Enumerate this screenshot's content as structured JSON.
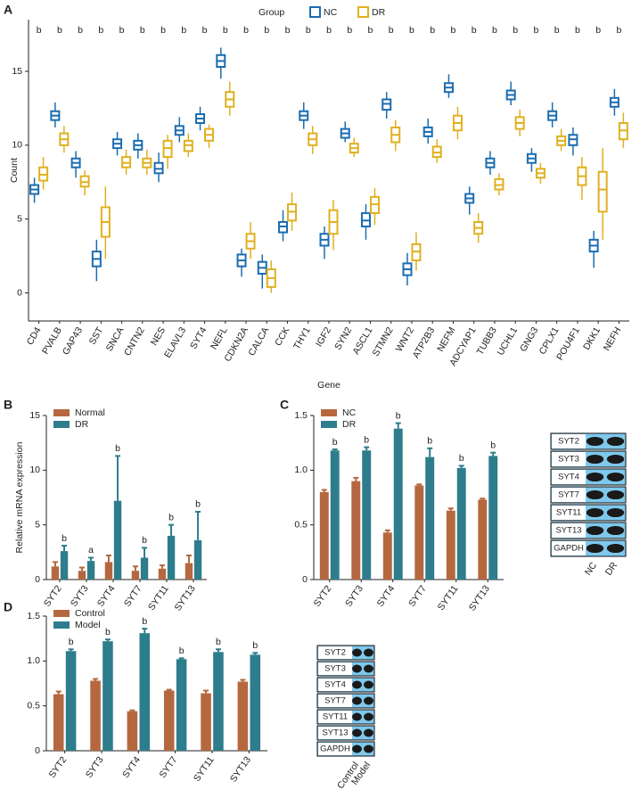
{
  "chart_data": [
    {
      "type": "box",
      "panel": "A",
      "legend_title": "Group",
      "x_label": "Gene",
      "y_label": "Count",
      "categories": [
        "CD4",
        "PVALB",
        "GAP43",
        "SST",
        "SNCA",
        "CNTN2",
        "NES",
        "ELAVL3",
        "SYT4",
        "NEFL",
        "CDKN2A",
        "CALCA",
        "CCK",
        "THY1",
        "IGF2",
        "SYN2",
        "ASCL1",
        "STMN2",
        "WNT2",
        "ATP2B3",
        "NEFM",
        "ADCYAP1",
        "TUBB3",
        "UCHL1",
        "GNG3",
        "CPLX1",
        "POU4F1",
        "DKK1",
        "NEFH"
      ],
      "annotations": [
        "b",
        "b",
        "b",
        "b",
        "b",
        "b",
        "b",
        "b",
        "b",
        "b",
        "b",
        "b",
        "b",
        "b",
        "b",
        "b",
        "b",
        "b",
        "b",
        "b",
        "b",
        "b",
        "b",
        "b",
        "b",
        "b",
        "b",
        "b",
        "b"
      ],
      "ylim": [
        -1.9,
        18.5
      ],
      "yticks": [
        0,
        5,
        10,
        15
      ],
      "series": [
        {
          "name": "NC",
          "color": "#1b6db0",
          "median": [
            7,
            12,
            8.8,
            2.3,
            10.1,
            10,
            8.4,
            11,
            11.8,
            15.7,
            2.2,
            1.7,
            4.5,
            12,
            3.6,
            10.8,
            4.9,
            12.8,
            1.6,
            10.9,
            13.9,
            6.4,
            8.8,
            13.4,
            9.1,
            12,
            10.4,
            3.2,
            12.9
          ],
          "q1": [
            6.7,
            11.7,
            8.5,
            1.8,
            9.8,
            9.7,
            8.1,
            10.7,
            11.5,
            15.3,
            1.8,
            1.3,
            4.1,
            11.7,
            3.2,
            10.5,
            4.5,
            12.4,
            1.2,
            10.6,
            13.6,
            6.1,
            8.5,
            13.1,
            8.8,
            11.7,
            10,
            2.8,
            12.6
          ],
          "q3": [
            7.3,
            12.3,
            9.1,
            2.8,
            10.4,
            10.3,
            8.8,
            11.3,
            12.1,
            16.1,
            2.6,
            2.1,
            4.8,
            12.3,
            4.0,
            11.1,
            5.4,
            13.1,
            2.0,
            11.2,
            14.2,
            6.7,
            9.1,
            13.7,
            9.4,
            12.3,
            10.7,
            3.6,
            13.2
          ],
          "whisker_low": [
            6.1,
            11.2,
            7.8,
            0.8,
            9.3,
            9.1,
            7.5,
            10.2,
            11,
            14.5,
            1.1,
            0.3,
            3.5,
            11.1,
            2.3,
            10.2,
            3.6,
            11.8,
            0.5,
            10.1,
            13.2,
            5.3,
            8,
            12.7,
            8.2,
            11.2,
            9.3,
            1.7,
            12
          ],
          "whisker_high": [
            7.8,
            12.9,
            9.6,
            3.6,
            10.9,
            10.8,
            9.5,
            11.9,
            12.6,
            16.6,
            3.0,
            2.6,
            5.6,
            12.9,
            4.5,
            11.6,
            6,
            13.6,
            2.7,
            11.8,
            14.8,
            7.2,
            9.6,
            14.3,
            9.8,
            12.9,
            11.2,
            4.2,
            13.8
          ]
        },
        {
          "name": "DR",
          "color": "#e0b020",
          "median": [
            8,
            10.4,
            7.5,
            4.8,
            8.8,
            8.8,
            9.8,
            10,
            10.7,
            13.1,
            3.5,
            1.0,
            5.5,
            10.4,
            4.8,
            9.8,
            6,
            10.7,
            2.8,
            9.5,
            11.5,
            4.4,
            7.3,
            11.5,
            8.1,
            10.3,
            7.9,
            7,
            11
          ],
          "q1": [
            7.6,
            10,
            7.2,
            3.8,
            8.5,
            8.5,
            9.2,
            9.6,
            10.3,
            12.6,
            3,
            0.4,
            4.9,
            10,
            4,
            9.5,
            5.4,
            10.2,
            2.2,
            9.2,
            11,
            4,
            7,
            11.1,
            7.8,
            10,
            7.3,
            5.5,
            10.4
          ],
          "q3": [
            8.5,
            10.8,
            7.9,
            5.8,
            9.2,
            9.1,
            10.3,
            10.3,
            11.1,
            13.6,
            4,
            1.6,
            6,
            10.8,
            5.6,
            10.1,
            6.5,
            11.2,
            3.3,
            9.9,
            12,
            4.8,
            7.7,
            11.9,
            8.4,
            10.6,
            8.5,
            8.2,
            11.5
          ],
          "whisker_low": [
            7,
            9.5,
            6.6,
            2.3,
            8,
            8,
            8.4,
            9.2,
            9.8,
            12,
            2.3,
            0,
            4.2,
            9.4,
            2.9,
            9.2,
            4.6,
            9.6,
            1.5,
            8.8,
            10.4,
            3.4,
            6.6,
            10.6,
            7.4,
            9.6,
            6.3,
            3.6,
            9.8
          ],
          "whisker_high": [
            9.2,
            11.3,
            8.3,
            7.2,
            9.7,
            9.7,
            10.7,
            10.8,
            11.4,
            14.3,
            4.8,
            2.2,
            6.8,
            11.3,
            6.3,
            10.5,
            7.1,
            11.7,
            4.1,
            10.4,
            12.6,
            5.4,
            8.1,
            12.4,
            8.8,
            11.1,
            9.2,
            9.8,
            12.2
          ]
        }
      ]
    },
    {
      "type": "bar",
      "panel": "B",
      "y_label": "Relative mRNA expression",
      "categories": [
        "SYT2",
        "SYT3",
        "SYT4",
        "SYT7",
        "SYT11",
        "SYT13"
      ],
      "ylim": [
        0,
        15
      ],
      "yticks": [
        0,
        5,
        10,
        15
      ],
      "annotations": [
        "b",
        "a",
        "b",
        "b",
        "b",
        "b"
      ],
      "series": [
        {
          "name": "Normal",
          "color": "#b5683f",
          "values": [
            1.2,
            0.8,
            1.6,
            0.8,
            1.0,
            1.5
          ],
          "errors": [
            0.4,
            0.3,
            0.6,
            0.4,
            0.3,
            0.7
          ]
        },
        {
          "name": "DR",
          "color": "#2e7d8c",
          "values": [
            2.6,
            1.7,
            7.2,
            2.0,
            4.0,
            3.6
          ],
          "errors": [
            0.5,
            0.3,
            4.1,
            0.9,
            1.0,
            2.6
          ]
        }
      ]
    },
    {
      "type": "bar",
      "panel": "C",
      "categories": [
        "SYT2",
        "SYT3",
        "SYT4",
        "SYT7",
        "SYT11",
        "SYT13"
      ],
      "ylim": [
        0,
        1.5
      ],
      "yticks": [
        0,
        0.5,
        {
          "value": 1,
          "label": "1.0"
        },
        1.5
      ],
      "annotations": [
        "b",
        "b",
        "b",
        "b",
        "b",
        "b"
      ],
      "series": [
        {
          "name": "NC",
          "color": "#b5683f",
          "values": [
            0.8,
            0.9,
            0.43,
            0.86,
            0.63,
            0.73
          ],
          "errors": [
            0.02,
            0.03,
            0.02,
            0.01,
            0.02,
            0.01
          ]
        },
        {
          "name": "DR",
          "color": "#2e7d8c",
          "values": [
            1.18,
            1.18,
            1.38,
            1.12,
            1.02,
            1.13
          ],
          "errors": [
            0.01,
            0.03,
            0.05,
            0.08,
            0.02,
            0.03
          ]
        }
      ],
      "blot_rows": [
        "SYT2",
        "SYT3",
        "SYT4",
        "SYT7",
        "SYT11",
        "SYT13",
        "GAPDH"
      ],
      "blot_columns": [
        "NC",
        "DR"
      ]
    },
    {
      "type": "bar",
      "panel": "D",
      "categories": [
        "SYT2",
        "SYT3",
        "SYT4",
        "SYT7",
        "SYT11",
        "SYT13"
      ],
      "ylim": [
        0,
        1.5
      ],
      "yticks": [
        0,
        0.5,
        {
          "value": 1,
          "label": "1.0"
        },
        1.5
      ],
      "annotations": [
        "b",
        "b",
        "b",
        "b",
        "b",
        "b"
      ],
      "series": [
        {
          "name": "Control",
          "color": "#b5683f",
          "values": [
            0.63,
            0.78,
            0.44,
            0.67,
            0.64,
            0.77
          ],
          "errors": [
            0.03,
            0.02,
            0.01,
            0.01,
            0.03,
            0.02
          ]
        },
        {
          "name": "Model",
          "color": "#2e7d8c",
          "values": [
            1.11,
            1.22,
            1.31,
            1.02,
            1.1,
            1.07
          ],
          "errors": [
            0.02,
            0.02,
            0.05,
            0.01,
            0.03,
            0.02
          ]
        }
      ],
      "blot_rows": [
        "SYT2",
        "SYT3",
        "SYT4",
        "SYT7",
        "SYT11",
        "SYT13",
        "GAPDH"
      ],
      "blot_columns": [
        "Control",
        "Model"
      ]
    }
  ]
}
